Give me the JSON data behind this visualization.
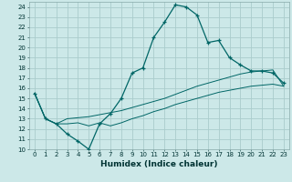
{
  "title": "",
  "xlabel": "Humidex (Indice chaleur)",
  "bg_color": "#cce8e8",
  "grid_color": "#aacccc",
  "line_color": "#006666",
  "xlim": [
    -0.5,
    23.5
  ],
  "ylim": [
    10,
    24.5
  ],
  "xticks": [
    0,
    1,
    2,
    3,
    4,
    5,
    6,
    7,
    8,
    9,
    10,
    11,
    12,
    13,
    14,
    15,
    16,
    17,
    18,
    19,
    20,
    21,
    22,
    23
  ],
  "yticks": [
    10,
    11,
    12,
    13,
    14,
    15,
    16,
    17,
    18,
    19,
    20,
    21,
    22,
    23,
    24
  ],
  "series1_x": [
    0,
    1,
    2,
    3,
    4,
    5,
    6,
    7,
    8,
    9,
    10,
    11,
    12,
    13,
    14,
    15,
    16,
    17,
    18,
    19,
    20,
    21,
    22,
    23
  ],
  "series1_y": [
    15.5,
    13.0,
    12.5,
    11.5,
    10.8,
    10.0,
    12.5,
    13.5,
    15.0,
    17.5,
    18.0,
    21.0,
    22.5,
    24.2,
    24.0,
    23.2,
    20.5,
    20.7,
    19.0,
    18.3,
    17.7,
    17.7,
    17.5,
    16.5
  ],
  "series2_x": [
    0,
    1,
    2,
    3,
    4,
    5,
    6,
    7,
    8,
    9,
    10,
    11,
    12,
    13,
    14,
    15,
    16,
    17,
    18,
    19,
    20,
    21,
    22,
    23
  ],
  "series2_y": [
    15.5,
    13.0,
    12.5,
    13.0,
    13.1,
    13.2,
    13.4,
    13.6,
    13.8,
    14.1,
    14.4,
    14.7,
    15.0,
    15.4,
    15.8,
    16.2,
    16.5,
    16.8,
    17.1,
    17.4,
    17.6,
    17.7,
    17.8,
    16.2
  ],
  "series3_x": [
    0,
    1,
    2,
    3,
    4,
    5,
    6,
    7,
    8,
    9,
    10,
    11,
    12,
    13,
    14,
    15,
    16,
    17,
    18,
    19,
    20,
    21,
    22,
    23
  ],
  "series3_y": [
    15.5,
    13.0,
    12.5,
    12.5,
    12.6,
    12.3,
    12.6,
    12.3,
    12.6,
    13.0,
    13.3,
    13.7,
    14.0,
    14.4,
    14.7,
    15.0,
    15.3,
    15.6,
    15.8,
    16.0,
    16.2,
    16.3,
    16.4,
    16.2
  ],
  "xlabel_fontsize": 6.5,
  "tick_fontsize": 5.0,
  "lw_main": 0.9,
  "lw_thin": 0.7,
  "marker_size": 3.5,
  "marker_ew": 0.9
}
